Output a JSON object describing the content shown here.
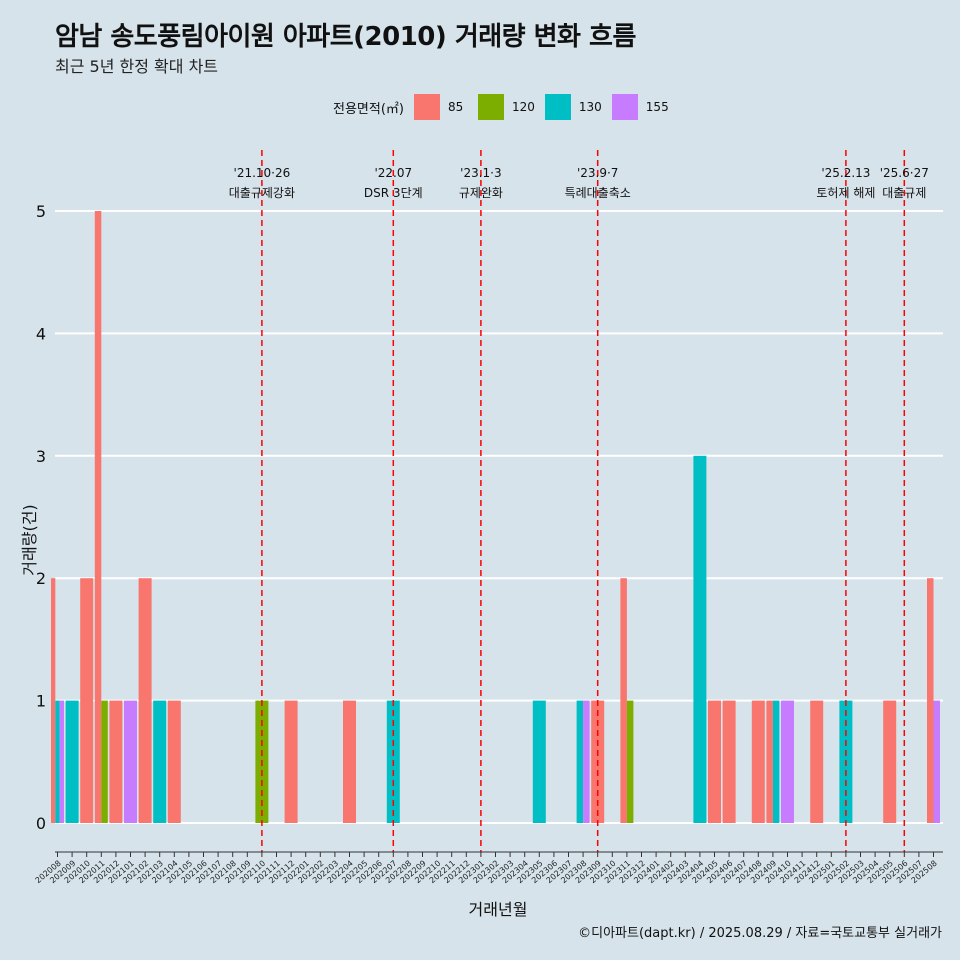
{
  "header": {
    "title": "암남 송도풍림아이원 아파트(2010) 거래량 변화 흐름",
    "subtitle": "최근 5년 한정 확대 차트"
  },
  "legend": {
    "title": "전용면적(㎡)",
    "items": [
      {
        "label": "85",
        "color": "#F8766D"
      },
      {
        "label": "120",
        "color": "#7CAE00"
      },
      {
        "label": "130",
        "color": "#00BFC4"
      },
      {
        "label": "155",
        "color": "#C77CFF"
      }
    ]
  },
  "caption": "©디아파트(dapt.kr) / 2025.08.29 / 자료=국토교통부 실거래가",
  "chart_data": {
    "type": "bar",
    "title": "암남 송도풍림아이원 아파트(2010) 거래량 변화 흐름",
    "subtitle": "최근 5년 한정 확대 차트",
    "xlabel": "거래년월",
    "ylabel": "거래량(건)",
    "ylim": [
      0,
      5
    ],
    "yticks": [
      0,
      1,
      2,
      3,
      4,
      5
    ],
    "grid": "horizontal",
    "legend_position": "top",
    "categories": [
      "202008",
      "202009",
      "202010",
      "202011",
      "202012",
      "202101",
      "202102",
      "202103",
      "202104",
      "202105",
      "202106",
      "202107",
      "202108",
      "202109",
      "202110",
      "202111",
      "202112",
      "202201",
      "202202",
      "202203",
      "202204",
      "202205",
      "202206",
      "202207",
      "202208",
      "202209",
      "202210",
      "202211",
      "202212",
      "202301",
      "202302",
      "202303",
      "202304",
      "202305",
      "202306",
      "202307",
      "202308",
      "202309",
      "202310",
      "202311",
      "202312",
      "202401",
      "202402",
      "202403",
      "202404",
      "202405",
      "202406",
      "202407",
      "202408",
      "202409",
      "202410",
      "202411",
      "202412",
      "202501",
      "202502",
      "202503",
      "202504",
      "202505",
      "202506",
      "202507",
      "202508"
    ],
    "series": [
      {
        "name": "85",
        "color": "#F8766D",
        "values": [
          2,
          0,
          2,
          5,
          1,
          0,
          2,
          0,
          1,
          0,
          0,
          0,
          0,
          0,
          0,
          0,
          1,
          0,
          0,
          0,
          1,
          0,
          0,
          0,
          0,
          0,
          0,
          0,
          0,
          0,
          0,
          0,
          0,
          0,
          0,
          0,
          0,
          1,
          0,
          2,
          0,
          0,
          0,
          0,
          0,
          1,
          1,
          0,
          1,
          1,
          0,
          0,
          1,
          0,
          0,
          0,
          0,
          1,
          0,
          0,
          2
        ]
      },
      {
        "name": "120",
        "color": "#7CAE00",
        "values": [
          0,
          0,
          0,
          1,
          0,
          0,
          0,
          0,
          0,
          0,
          0,
          0,
          0,
          0,
          1,
          0,
          0,
          0,
          0,
          0,
          0,
          0,
          0,
          0,
          0,
          0,
          0,
          0,
          0,
          0,
          0,
          0,
          0,
          0,
          0,
          0,
          0,
          0,
          0,
          1,
          0,
          0,
          0,
          0,
          0,
          0,
          0,
          0,
          0,
          0,
          0,
          0,
          0,
          0,
          0,
          0,
          0,
          0,
          0,
          0,
          0
        ]
      },
      {
        "name": "130",
        "color": "#00BFC4",
        "values": [
          1,
          1,
          0,
          0,
          0,
          0,
          0,
          1,
          0,
          0,
          0,
          0,
          0,
          0,
          0,
          0,
          0,
          0,
          0,
          0,
          0,
          0,
          0,
          1,
          0,
          0,
          0,
          0,
          0,
          0,
          0,
          0,
          0,
          1,
          0,
          0,
          1,
          0,
          0,
          0,
          0,
          0,
          0,
          0,
          3,
          0,
          0,
          0,
          0,
          1,
          0,
          0,
          0,
          0,
          1,
          0,
          0,
          0,
          0,
          0,
          0
        ]
      },
      {
        "name": "155",
        "color": "#C77CFF",
        "values": [
          1,
          0,
          0,
          0,
          0,
          1,
          0,
          0,
          0,
          0,
          0,
          0,
          0,
          0,
          0,
          0,
          0,
          0,
          0,
          0,
          0,
          0,
          0,
          0,
          0,
          0,
          0,
          0,
          0,
          0,
          0,
          0,
          0,
          0,
          0,
          0,
          1,
          0,
          0,
          0,
          0,
          0,
          0,
          0,
          0,
          0,
          0,
          0,
          0,
          0,
          1,
          0,
          0,
          0,
          0,
          0,
          0,
          0,
          0,
          0,
          1
        ]
      }
    ],
    "annotations": [
      {
        "date_label": "'21.10·26",
        "text": "대출규제강화",
        "x": "202110"
      },
      {
        "date_label": "'22.07",
        "text": "DSR 3단계",
        "x": "202207"
      },
      {
        "date_label": "'23.1·3",
        "text": "규제완화",
        "x": "202301"
      },
      {
        "date_label": "'23.9·7",
        "text": "특례대출축소",
        "x": "202309"
      },
      {
        "date_label": "'25.2.13",
        "text": "토허제 해제",
        "x": "202502"
      },
      {
        "date_label": "'25.6·27",
        "text": "대출규제",
        "x": "202506"
      }
    ]
  }
}
